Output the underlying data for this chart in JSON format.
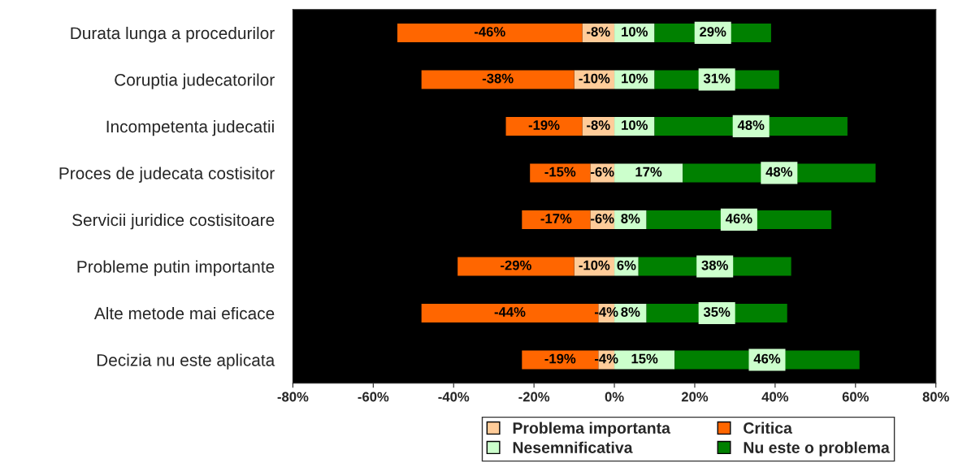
{
  "chart_data": {
    "type": "bar",
    "orientation": "horizontal",
    "stacked": true,
    "categories": [
      "Durata lunga a procedurilor",
      "Coruptia judecatorilor",
      "Incompetenta judecatii",
      "Proces de judecata costisitor",
      "Servicii juridice costisitoare",
      "Probleme putin importante",
      "Alte metode mai eficace",
      "Decizia nu este aplicata"
    ],
    "series": [
      {
        "name": "Problema importanta",
        "color": "#ffcc99",
        "values": [
          -8,
          -10,
          -8,
          -6,
          -6,
          -10,
          -4,
          -4
        ],
        "value_labels": [
          "-8%",
          "-10%",
          "-8%",
          "-6%",
          "-6%",
          "-10%",
          "-4%",
          "-4%"
        ]
      },
      {
        "name": "Critica",
        "color": "#ff6600",
        "values": [
          -46,
          -38,
          -19,
          -15,
          -17,
          -29,
          -44,
          -19
        ],
        "value_labels": [
          "-46%",
          "-38%",
          "-19%",
          "-15%",
          "-17%",
          "-29%",
          "-44%",
          "-19%"
        ]
      },
      {
        "name": "Nesemnificativa",
        "color": "#ccffcc",
        "values": [
          10,
          10,
          10,
          17,
          8,
          6,
          8,
          15
        ],
        "value_labels": [
          "10%",
          "10%",
          "10%",
          "17%",
          "8%",
          "6%",
          "8%",
          "15%"
        ]
      },
      {
        "name": "Nu este o problema",
        "color": "#008000",
        "values": [
          29,
          31,
          48,
          48,
          46,
          38,
          35,
          46
        ],
        "value_labels": [
          "29%",
          "31%",
          "48%",
          "48%",
          "46%",
          "38%",
          "35%",
          "46%"
        ]
      }
    ],
    "xlim": [
      -80,
      80
    ],
    "xticks": [
      {
        "value": -80,
        "label": "-80%"
      },
      {
        "value": -60,
        "label": "-60%"
      },
      {
        "value": -40,
        "label": "-40%"
      },
      {
        "value": -20,
        "label": "-20%"
      },
      {
        "value": 0,
        "label": "0%"
      },
      {
        "value": 20,
        "label": "20%"
      },
      {
        "value": 40,
        "label": "40%"
      },
      {
        "value": 60,
        "label": "60%"
      },
      {
        "value": 80,
        "label": "80%"
      }
    ],
    "grid": false,
    "legend": "bottom"
  }
}
